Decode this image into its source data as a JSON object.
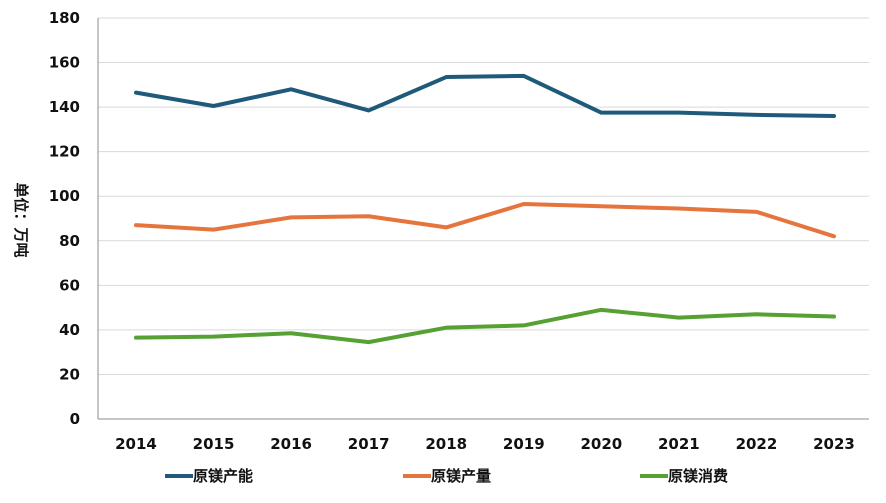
{
  "chart_data": {
    "type": "line",
    "title": "",
    "xlabel": "",
    "ylabel": "单位：万吨",
    "categories": [
      "2014",
      "2015",
      "2016",
      "2017",
      "2018",
      "2019",
      "2020",
      "2021",
      "2022",
      "2023"
    ],
    "ylim": [
      0,
      180
    ],
    "yticks": [
      0,
      20,
      40,
      60,
      80,
      100,
      120,
      140,
      160,
      180
    ],
    "grid": true,
    "legend_position": "bottom",
    "series": [
      {
        "name": "原镁产能",
        "color": "#1f5a7a",
        "values": [
          146.5,
          140.5,
          148,
          138.5,
          153.5,
          154,
          137.5,
          137.5,
          136.5,
          136
        ]
      },
      {
        "name": "原镁产量",
        "color": "#e5753c",
        "values": [
          87,
          85,
          90.5,
          91,
          86,
          96.5,
          95.5,
          94.5,
          93,
          82
        ]
      },
      {
        "name": "原镁消费",
        "color": "#55a134",
        "values": [
          36.5,
          37,
          38.5,
          34.5,
          41,
          42,
          49,
          45.5,
          47,
          46
        ]
      }
    ]
  }
}
